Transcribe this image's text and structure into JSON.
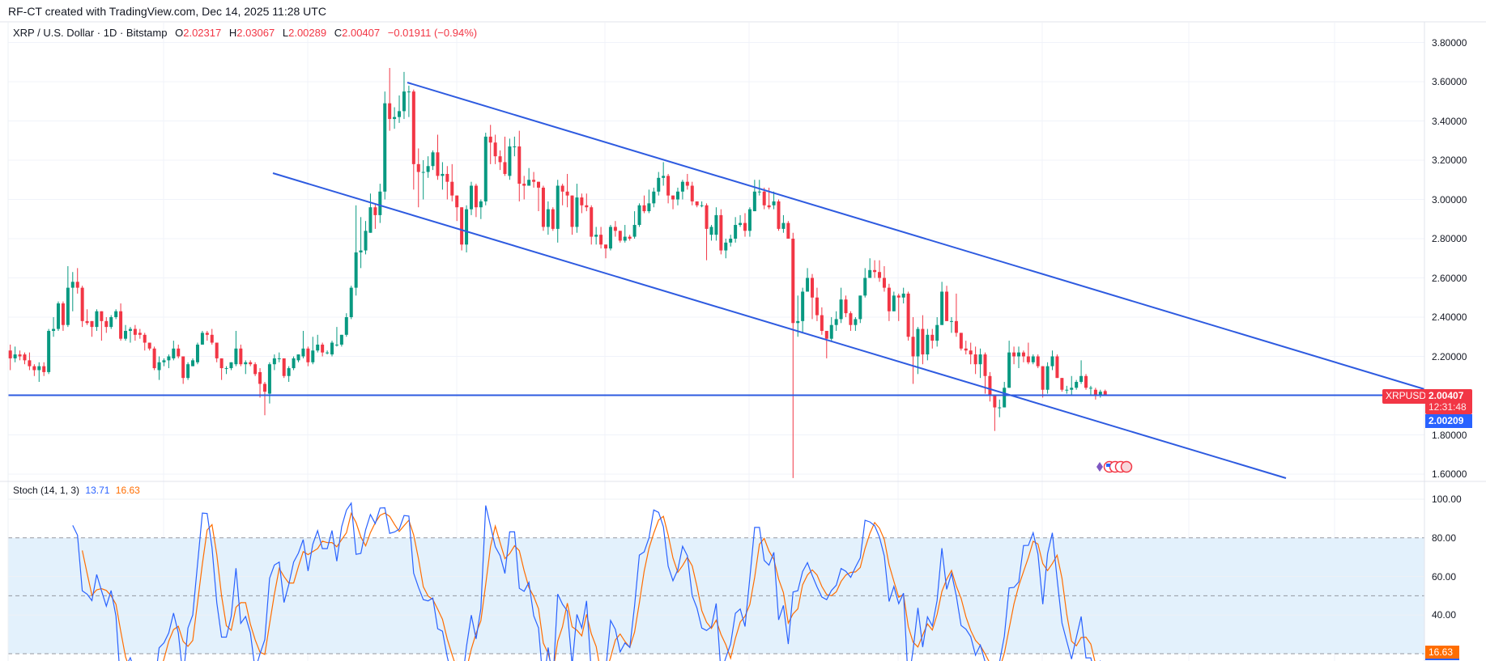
{
  "header": {
    "credit": "RF-CT created with TradingView.com, Dec 14, 2025 11:28 UTC"
  },
  "legend": {
    "symbol": "XRP / U.S. Dollar · 1D · Bitstamp",
    "open_label": "O",
    "open": "2.02317",
    "high_label": "H",
    "high": "2.03067",
    "low_label": "L",
    "low": "2.00289",
    "close_label": "C",
    "close": "2.00407",
    "change": "−0.01911 (−0.94%)"
  },
  "price_tags": {
    "symbol": "XRPUSD",
    "last": "2.00407",
    "countdown": "12:31:48",
    "line_level": "2.00209"
  },
  "stoch_legend": {
    "name": "Stoch (14, 1, 3)",
    "k": "13.71",
    "d": "16.63"
  },
  "colors": {
    "up": "#089981",
    "down": "#f23645",
    "trendline": "#2e5be0",
    "stoch_k": "#2962ff",
    "stoch_d": "#ff6d00",
    "stoch_band": "#e3f1fc"
  },
  "chart_data": {
    "type": "candlestick",
    "title": "XRP / U.S. Dollar · 1D · Bitstamp",
    "interval": "1D",
    "y_axis_ticks": [
      "3.80000",
      "3.60000",
      "3.40000",
      "3.20000",
      "3.00000",
      "2.80000",
      "2.60000",
      "2.40000",
      "2.20000",
      "1.80000",
      "1.60000"
    ],
    "ylim": [
      1.58,
      3.9
    ],
    "grid": true,
    "candles_ohlc": [
      [
        2.23,
        2.26,
        2.13,
        2.19
      ],
      [
        2.19,
        2.25,
        2.17,
        2.21
      ],
      [
        2.21,
        2.23,
        2.18,
        2.2
      ],
      [
        2.21,
        2.22,
        2.16,
        2.18
      ],
      [
        2.18,
        2.22,
        2.13,
        2.15
      ],
      [
        2.15,
        2.16,
        2.1,
        2.13
      ],
      [
        2.13,
        2.17,
        2.07,
        2.15
      ],
      [
        2.15,
        2.17,
        2.1,
        2.12
      ],
      [
        2.12,
        2.34,
        2.11,
        2.33
      ],
      [
        2.33,
        2.4,
        2.3,
        2.34
      ],
      [
        2.34,
        2.48,
        2.33,
        2.47
      ],
      [
        2.47,
        2.48,
        2.33,
        2.36
      ],
      [
        2.36,
        2.66,
        2.35,
        2.55
      ],
      [
        2.55,
        2.63,
        2.43,
        2.58
      ],
      [
        2.58,
        2.65,
        2.52,
        2.55
      ],
      [
        2.55,
        2.56,
        2.35,
        2.38
      ],
      [
        2.38,
        2.44,
        2.36,
        2.37
      ],
      [
        2.38,
        2.38,
        2.3,
        2.35
      ],
      [
        2.35,
        2.44,
        2.33,
        2.43
      ],
      [
        2.43,
        2.43,
        2.28,
        2.38
      ],
      [
        2.38,
        2.4,
        2.32,
        2.35
      ],
      [
        2.35,
        2.41,
        2.34,
        2.4
      ],
      [
        2.4,
        2.44,
        2.39,
        2.43
      ],
      [
        2.43,
        2.47,
        2.28,
        2.29
      ],
      [
        2.29,
        2.36,
        2.28,
        2.33
      ],
      [
        2.33,
        2.35,
        2.27,
        2.34
      ],
      [
        2.34,
        2.36,
        2.28,
        2.31
      ],
      [
        2.32,
        2.34,
        2.29,
        2.31
      ],
      [
        2.31,
        2.32,
        2.23,
        2.27
      ],
      [
        2.27,
        2.27,
        2.23,
        2.24
      ],
      [
        2.24,
        2.25,
        2.13,
        2.14
      ],
      [
        2.13,
        2.2,
        2.08,
        2.17
      ],
      [
        2.17,
        2.19,
        2.15,
        2.18
      ],
      [
        2.18,
        2.21,
        2.14,
        2.2
      ],
      [
        2.19,
        2.28,
        2.18,
        2.24
      ],
      [
        2.24,
        2.26,
        2.19,
        2.2
      ],
      [
        2.2,
        2.2,
        2.06,
        2.09
      ],
      [
        2.09,
        2.17,
        2.08,
        2.16
      ],
      [
        2.15,
        2.19,
        2.15,
        2.18
      ],
      [
        2.17,
        2.27,
        2.16,
        2.26
      ],
      [
        2.26,
        2.33,
        2.26,
        2.32
      ],
      [
        2.32,
        2.33,
        2.28,
        2.31
      ],
      [
        2.31,
        2.34,
        2.26,
        2.27
      ],
      [
        2.27,
        2.27,
        2.17,
        2.19
      ],
      [
        2.19,
        2.19,
        2.08,
        2.14
      ],
      [
        2.14,
        2.15,
        2.11,
        2.14
      ],
      [
        2.14,
        2.17,
        2.13,
        2.17
      ],
      [
        2.16,
        2.33,
        2.15,
        2.24
      ],
      [
        2.24,
        2.26,
        2.15,
        2.16
      ],
      [
        2.16,
        2.18,
        2.11,
        2.17
      ],
      [
        2.17,
        2.18,
        2.15,
        2.16
      ],
      [
        2.16,
        2.17,
        2.1,
        2.11
      ],
      [
        2.12,
        2.14,
        1.99,
        2.06
      ],
      [
        2.06,
        2.07,
        1.9,
        2.02
      ],
      [
        2.01,
        2.17,
        1.96,
        2.16
      ],
      [
        2.16,
        2.21,
        2.13,
        2.19
      ],
      [
        2.19,
        2.22,
        2.17,
        2.19
      ],
      [
        2.19,
        2.19,
        2.09,
        2.1
      ],
      [
        2.1,
        2.15,
        2.07,
        2.14
      ],
      [
        2.14,
        2.2,
        2.13,
        2.19
      ],
      [
        2.18,
        2.21,
        2.17,
        2.21
      ],
      [
        2.2,
        2.33,
        2.19,
        2.24
      ],
      [
        2.24,
        2.25,
        2.15,
        2.17
      ],
      [
        2.17,
        2.3,
        2.16,
        2.23
      ],
      [
        2.23,
        2.31,
        2.22,
        2.26
      ],
      [
        2.26,
        2.27,
        2.2,
        2.22
      ],
      [
        2.22,
        2.23,
        2.21,
        2.22
      ],
      [
        2.21,
        2.28,
        2.2,
        2.27
      ],
      [
        2.26,
        2.35,
        2.25,
        2.26
      ],
      [
        2.26,
        2.31,
        2.25,
        2.31
      ],
      [
        2.31,
        2.42,
        2.3,
        2.4
      ],
      [
        2.4,
        2.56,
        2.39,
        2.55
      ],
      [
        2.55,
        2.97,
        2.51,
        2.73
      ],
      [
        2.73,
        2.91,
        2.65,
        2.74
      ],
      [
        2.74,
        2.89,
        2.72,
        2.84
      ],
      [
        2.83,
        3.03,
        2.83,
        2.96
      ],
      [
        2.96,
        2.98,
        2.85,
        2.92
      ],
      [
        2.92,
        3.08,
        2.88,
        3.04
      ],
      [
        3.04,
        3.55,
        3.0,
        3.49
      ],
      [
        3.49,
        3.67,
        3.35,
        3.41
      ],
      [
        3.41,
        3.47,
        3.36,
        3.42
      ],
      [
        3.42,
        3.53,
        3.39,
        3.45
      ],
      [
        3.45,
        3.65,
        3.41,
        3.55
      ],
      [
        3.55,
        3.58,
        3.42,
        3.55
      ],
      [
        3.55,
        3.56,
        3.05,
        3.18
      ],
      [
        3.18,
        3.26,
        2.96,
        3.14
      ],
      [
        3.14,
        3.2,
        3.0,
        3.14
      ],
      [
        3.14,
        3.22,
        3.11,
        3.17
      ],
      [
        3.17,
        3.25,
        3.15,
        3.24
      ],
      [
        3.24,
        3.33,
        3.1,
        3.12
      ],
      [
        3.12,
        3.19,
        3.05,
        3.13
      ],
      [
        3.13,
        3.17,
        3.0,
        3.09
      ],
      [
        3.09,
        3.18,
        2.99,
        3.02
      ],
      [
        3.02,
        2.99,
        2.89,
        2.96
      ],
      [
        2.96,
        2.94,
        2.74,
        2.77
      ],
      [
        2.77,
        2.97,
        2.73,
        2.95
      ],
      [
        2.95,
        3.09,
        2.92,
        3.07
      ],
      [
        3.07,
        3.08,
        2.91,
        2.96
      ],
      [
        2.96,
        3.0,
        2.9,
        2.99
      ],
      [
        2.99,
        3.34,
        2.97,
        3.32
      ],
      [
        3.32,
        3.38,
        3.18,
        3.29
      ],
      [
        3.29,
        3.33,
        3.18,
        3.22
      ],
      [
        3.22,
        3.25,
        3.15,
        3.19
      ],
      [
        3.19,
        3.32,
        3.12,
        3.13
      ],
      [
        3.12,
        3.31,
        3.1,
        3.27
      ],
      [
        3.27,
        3.32,
        3.22,
        3.27
      ],
      [
        3.27,
        3.35,
        2.99,
        3.08
      ],
      [
        3.08,
        3.12,
        3.0,
        3.07
      ],
      [
        3.07,
        3.16,
        3.07,
        3.1
      ],
      [
        3.1,
        3.14,
        3.06,
        3.09
      ],
      [
        3.09,
        3.09,
        2.94,
        3.06
      ],
      [
        3.06,
        3.07,
        2.84,
        2.86
      ],
      [
        2.86,
        2.99,
        2.82,
        2.95
      ],
      [
        2.95,
        2.96,
        2.84,
        2.85
      ],
      [
        2.85,
        3.1,
        2.78,
        3.07
      ],
      [
        3.07,
        3.08,
        2.97,
        3.04
      ],
      [
        3.04,
        3.13,
        2.96,
        3.02
      ],
      [
        3.02,
        3.02,
        2.82,
        2.86
      ],
      [
        2.86,
        3.08,
        2.83,
        3.01
      ],
      [
        3.01,
        3.03,
        2.93,
        2.97
      ],
      [
        2.97,
        3.03,
        2.94,
        2.96
      ],
      [
        2.96,
        2.97,
        2.77,
        2.81
      ],
      [
        2.81,
        2.86,
        2.77,
        2.82
      ],
      [
        2.82,
        2.86,
        2.75,
        2.77
      ],
      [
        2.77,
        2.77,
        2.7,
        2.75
      ],
      [
        2.75,
        2.87,
        2.74,
        2.86
      ],
      [
        2.86,
        2.89,
        2.81,
        2.84
      ],
      [
        2.84,
        2.84,
        2.78,
        2.79
      ],
      [
        2.79,
        2.87,
        2.78,
        2.81
      ],
      [
        2.81,
        2.82,
        2.79,
        2.8
      ],
      [
        2.81,
        2.94,
        2.8,
        2.87
      ],
      [
        2.87,
        2.98,
        2.86,
        2.97
      ],
      [
        2.97,
        3.02,
        2.93,
        2.94
      ],
      [
        2.94,
        3.05,
        2.93,
        2.98
      ],
      [
        2.98,
        3.06,
        2.96,
        3.04
      ],
      [
        3.04,
        3.14,
        3.02,
        3.11
      ],
      [
        3.11,
        3.19,
        3.07,
        3.12
      ],
      [
        3.12,
        3.13,
        2.98,
        3.02
      ],
      [
        3.02,
        3.02,
        2.95,
        3.0
      ],
      [
        3.0,
        3.06,
        2.97,
        3.04
      ],
      [
        3.04,
        3.1,
        3.0,
        3.09
      ],
      [
        3.09,
        3.13,
        3.05,
        3.07
      ],
      [
        3.07,
        3.09,
        2.97,
        2.99
      ],
      [
        2.99,
        2.99,
        2.96,
        2.97
      ],
      [
        2.97,
        2.99,
        2.96,
        2.97
      ],
      [
        2.97,
        2.98,
        2.69,
        2.85
      ],
      [
        2.82,
        2.87,
        2.79,
        2.86
      ],
      [
        2.82,
        2.96,
        2.79,
        2.92
      ],
      [
        2.92,
        2.95,
        2.72,
        2.74
      ],
      [
        2.74,
        2.8,
        2.7,
        2.78
      ],
      [
        2.78,
        2.82,
        2.76,
        2.8
      ],
      [
        2.8,
        2.91,
        2.78,
        2.87
      ],
      [
        2.87,
        2.92,
        2.86,
        2.88
      ],
      [
        2.88,
        2.93,
        2.81,
        2.84
      ],
      [
        2.84,
        2.96,
        2.81,
        2.95
      ],
      [
        2.94,
        3.1,
        2.94,
        3.04
      ],
      [
        3.04,
        3.1,
        3.02,
        3.04
      ],
      [
        3.04,
        3.06,
        2.95,
        2.97
      ],
      [
        2.97,
        3.06,
        2.95,
        2.96
      ],
      [
        2.97,
        3.04,
        2.95,
        2.99
      ],
      [
        2.99,
        3.0,
        2.84,
        2.85
      ],
      [
        2.85,
        2.92,
        2.83,
        2.88
      ],
      [
        2.88,
        2.89,
        2.8,
        2.8
      ],
      [
        2.8,
        2.83,
        1.58,
        2.37
      ],
      [
        2.37,
        2.51,
        2.3,
        2.38
      ],
      [
        2.38,
        2.55,
        2.32,
        2.53
      ],
      [
        2.53,
        2.65,
        2.53,
        2.6
      ],
      [
        2.6,
        2.62,
        2.39,
        2.5
      ],
      [
        2.5,
        2.55,
        2.38,
        2.41
      ],
      [
        2.41,
        2.45,
        2.31,
        2.33
      ],
      [
        2.33,
        2.3,
        2.19,
        2.29
      ],
      [
        2.29,
        2.4,
        2.28,
        2.36
      ],
      [
        2.36,
        2.43,
        2.33,
        2.39
      ],
      [
        2.39,
        2.55,
        2.37,
        2.49
      ],
      [
        2.49,
        2.51,
        2.4,
        2.42
      ],
      [
        2.42,
        2.43,
        2.33,
        2.36
      ],
      [
        2.36,
        2.4,
        2.33,
        2.39
      ],
      [
        2.39,
        2.51,
        2.37,
        2.51
      ],
      [
        2.51,
        2.65,
        2.5,
        2.6
      ],
      [
        2.6,
        2.7,
        2.6,
        2.64
      ],
      [
        2.64,
        2.69,
        2.6,
        2.63
      ],
      [
        2.63,
        2.69,
        2.58,
        2.6
      ],
      [
        2.6,
        2.66,
        2.53,
        2.55
      ],
      [
        2.55,
        2.57,
        2.38,
        2.43
      ],
      [
        2.43,
        2.53,
        2.43,
        2.51
      ],
      [
        2.51,
        2.52,
        2.38,
        2.5
      ],
      [
        2.5,
        2.55,
        2.47,
        2.52
      ],
      [
        2.52,
        2.53,
        2.28,
        2.3
      ],
      [
        2.3,
        2.4,
        2.06,
        2.2
      ],
      [
        2.2,
        2.35,
        2.11,
        2.34
      ],
      [
        2.34,
        2.41,
        2.16,
        2.21
      ],
      [
        2.21,
        2.34,
        2.18,
        2.31
      ],
      [
        2.31,
        2.34,
        2.24,
        2.28
      ],
      [
        2.28,
        2.4,
        2.25,
        2.36
      ],
      [
        2.36,
        2.58,
        2.36,
        2.53
      ],
      [
        2.53,
        2.56,
        2.38,
        2.38
      ],
      [
        2.38,
        2.4,
        2.32,
        2.38
      ],
      [
        2.38,
        2.52,
        2.3,
        2.32
      ],
      [
        2.32,
        2.32,
        2.23,
        2.24
      ],
      [
        2.24,
        2.28,
        2.21,
        2.23
      ],
      [
        2.23,
        2.27,
        2.16,
        2.21
      ],
      [
        2.21,
        2.25,
        2.11,
        2.16
      ],
      [
        2.16,
        2.24,
        2.09,
        2.21
      ],
      [
        2.21,
        2.22,
        2.01,
        2.1
      ],
      [
        2.1,
        2.12,
        1.97,
        2.0
      ],
      [
        2.0,
        1.98,
        1.82,
        1.94
      ],
      [
        1.94,
        1.98,
        1.89,
        1.94
      ],
      [
        1.94,
        2.07,
        1.94,
        2.04
      ],
      [
        2.04,
        2.28,
        2.04,
        2.22
      ],
      [
        2.22,
        2.25,
        2.16,
        2.2
      ],
      [
        2.2,
        2.25,
        2.14,
        2.22
      ],
      [
        2.22,
        2.23,
        2.17,
        2.2
      ],
      [
        2.2,
        2.27,
        2.16,
        2.17
      ],
      [
        2.17,
        2.21,
        2.16,
        2.2
      ],
      [
        2.2,
        2.21,
        2.14,
        2.15
      ],
      [
        2.15,
        2.15,
        1.99,
        2.03
      ],
      [
        2.03,
        2.17,
        2.01,
        2.15
      ],
      [
        2.15,
        2.23,
        2.13,
        2.2
      ],
      [
        2.2,
        2.21,
        2.09,
        2.09
      ],
      [
        2.09,
        2.09,
        2.02,
        2.03
      ],
      [
        2.03,
        2.05,
        2.01,
        2.03
      ],
      [
        2.03,
        2.1,
        2.0,
        2.04
      ],
      [
        2.04,
        2.08,
        2.03,
        2.07
      ],
      [
        2.07,
        2.18,
        2.06,
        2.1
      ],
      [
        2.1,
        2.11,
        2.03,
        2.04
      ],
      [
        2.04,
        2.05,
        2.0,
        2.04
      ],
      [
        2.03,
        2.04,
        1.98,
        2.0
      ],
      [
        2.0,
        2.03,
        1.99,
        2.02
      ],
      [
        2.02317,
        2.03067,
        2.00289,
        2.00407
      ]
    ],
    "trendlines": [
      {
        "name": "channel-upper",
        "from_price": 3.6,
        "to_price": 2.04,
        "from_bar": 82,
        "to_bar_price_at_axis": 2.04
      },
      {
        "name": "channel-lower",
        "from_price": 3.13,
        "to_price": 1.58,
        "from_bar": 55
      },
      {
        "name": "horizontal-support",
        "price": 2.00209
      }
    ],
    "indicator": {
      "name": "Stoch (14, 1, 3)",
      "k_period": 14,
      "k_smoothing": 1,
      "d_period": 3,
      "last_k": 13.71,
      "last_d": 16.63,
      "y_axis_ticks": [
        "100.00",
        "80.00",
        "60.00",
        "40.00"
      ],
      "levels": [
        80,
        50,
        20
      ],
      "band": [
        20,
        80
      ]
    }
  }
}
